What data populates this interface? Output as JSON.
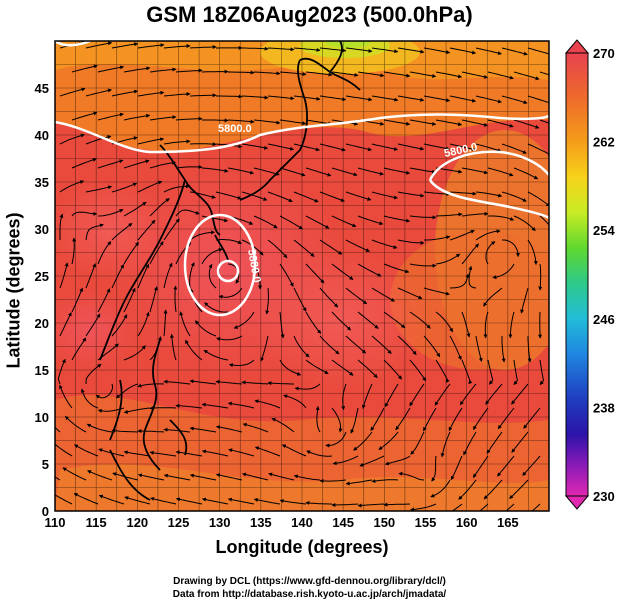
{
  "title": "GSM 18Z06Aug2023 (500.0hPa)",
  "xlabel": "Longitude (degrees)",
  "ylabel": "Latitude  (degrees)",
  "xticks": [
    "110",
    "115",
    "120",
    "125",
    "130",
    "135",
    "140",
    "145",
    "150",
    "155",
    "160",
    "165"
  ],
  "yticks": [
    "0",
    "5",
    "10",
    "15",
    "20",
    "25",
    "30",
    "35",
    "40",
    "45"
  ],
  "colorbar": {
    "labels": [
      "270",
      "262",
      "254",
      "246",
      "238",
      "230"
    ],
    "colors": [
      "#e8434f",
      "#ee6a2c",
      "#f59d1a",
      "#f7d21a",
      "#c8ec25",
      "#5fd82e",
      "#2ec98a",
      "#22bcd8",
      "#1f86e0",
      "#1f3ec0",
      "#2b14a8",
      "#8a1ab8",
      "#e028b0"
    ]
  },
  "contours": [
    {
      "label": "5800.0"
    },
    {
      "label": "5800.0"
    },
    {
      "label": "5880.0"
    }
  ],
  "credit_line1": "Drawing by DCL (https://www.gfd-dennou.org/library/dcl/)",
  "credit_line2": "Data from http://database.rish.kyoto-u.ac.jp/arch/jmadata/",
  "chart_data": {
    "type": "heatmap",
    "title": "GSM 18Z06Aug2023 (500.0hPa)",
    "xlabel": "Longitude (degrees)",
    "ylabel": "Latitude  (degrees)",
    "xlim": [
      110,
      170
    ],
    "ylim": [
      0,
      50
    ],
    "color_range": [
      230,
      270
    ],
    "features": [
      "temperature shading",
      "streamlines",
      "geopotential height contours",
      "coastlines",
      "typhoon center near 131E 27N"
    ]
  }
}
